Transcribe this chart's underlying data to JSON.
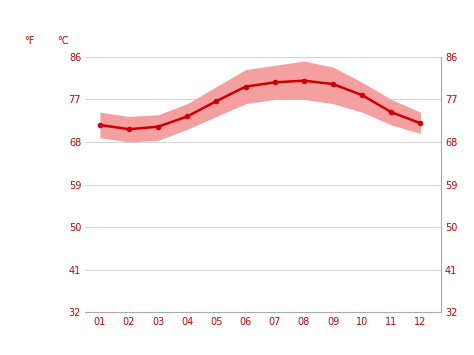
{
  "months": [
    1,
    2,
    3,
    4,
    5,
    6,
    7,
    8,
    9,
    10,
    11,
    12
  ],
  "month_labels": [
    "01",
    "02",
    "03",
    "04",
    "05",
    "06",
    "07",
    "08",
    "09",
    "10",
    "11",
    "12"
  ],
  "avg_temp_c": [
    22.0,
    21.5,
    21.8,
    23.0,
    24.8,
    26.5,
    27.0,
    27.2,
    26.8,
    25.5,
    23.5,
    22.2
  ],
  "temp_max_c": [
    23.5,
    23.0,
    23.2,
    24.5,
    26.5,
    28.5,
    29.0,
    29.5,
    28.8,
    27.0,
    25.0,
    23.5
  ],
  "temp_min_c": [
    20.5,
    20.0,
    20.2,
    21.5,
    23.0,
    24.5,
    25.0,
    25.0,
    24.5,
    23.5,
    22.0,
    21.0
  ],
  "line_color": "#cc0000",
  "band_color": "#f5a0a0",
  "axis_color": "#cc0000",
  "bg_color": "#ffffff",
  "grid_color": "#cccccc",
  "ylim_c": [
    0,
    30
  ],
  "yticks_c": [
    0,
    5,
    10,
    15,
    20,
    25,
    30
  ],
  "yticks_f": [
    32,
    41,
    50,
    59,
    68,
    77,
    86
  ],
  "left_label_f": "°F",
  "left_label_c": "°C",
  "marker_size": 3,
  "line_width": 1.8,
  "xlim": [
    0.5,
    12.7
  ]
}
